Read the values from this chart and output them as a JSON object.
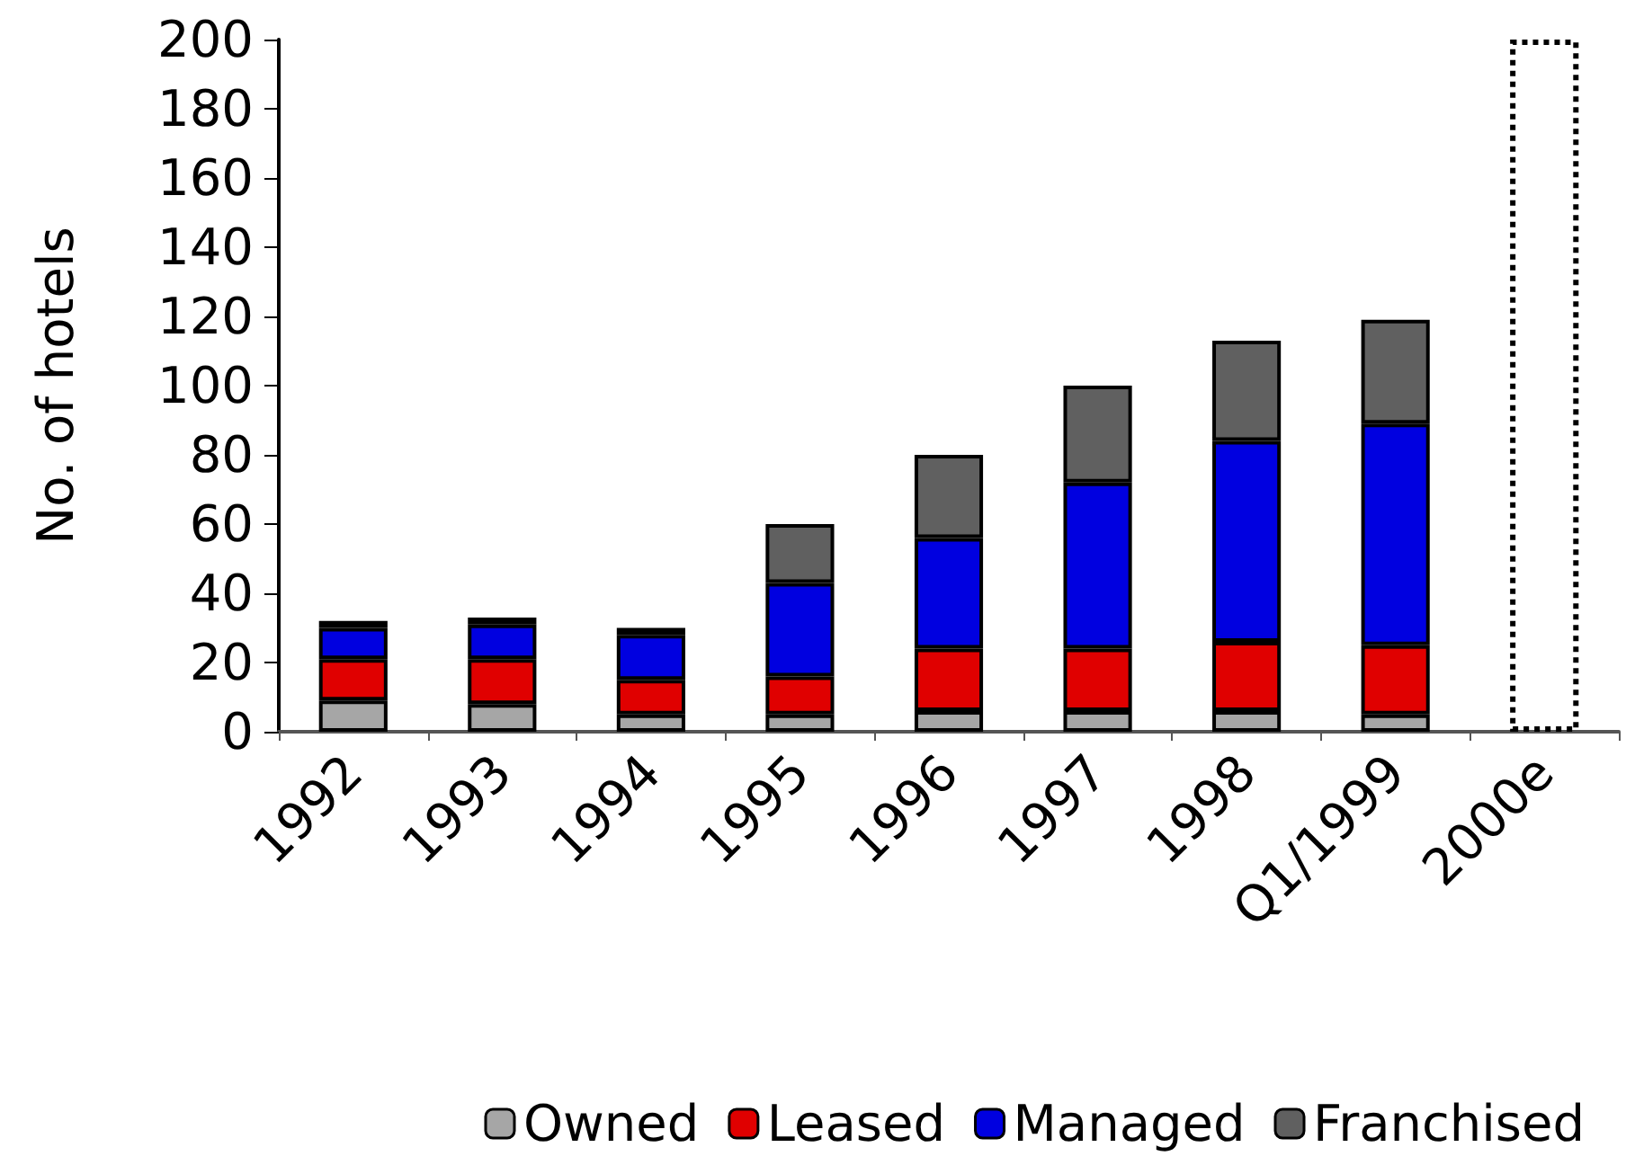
{
  "chart_data": {
    "type": "bar",
    "stacked": true,
    "ylabel": "No. of hotels",
    "categories": [
      "1992",
      "1993",
      "1994",
      "1995",
      "1996",
      "1997",
      "1998",
      "Q1/1999",
      "2000e"
    ],
    "series": [
      {
        "name": "Owned",
        "color": "#a6a6a6",
        "values": [
          9,
          8,
          5,
          5,
          6,
          6,
          6,
          5,
          null
        ]
      },
      {
        "name": "Leased",
        "color": "#e00000",
        "values": [
          12,
          13,
          10,
          11,
          18,
          18,
          20,
          20,
          null
        ]
      },
      {
        "name": "Managed",
        "color": "#0000e0",
        "values": [
          9,
          10,
          13,
          27,
          32,
          48,
          58,
          64,
          null
        ]
      },
      {
        "name": "Franchised",
        "color": "#606060",
        "values": [
          2,
          2,
          2,
          17,
          24,
          28,
          29,
          30,
          null
        ]
      },
      {
        "color": "#ffffff",
        "line_style": "dotted",
        "values": [
          null,
          null,
          null,
          null,
          null,
          null,
          null,
          null,
          200
        ]
      }
    ],
    "ylim": [
      0,
      200
    ],
    "yticks": [
      0,
      20,
      40,
      60,
      80,
      100,
      120,
      140,
      160,
      180,
      200
    ],
    "grid": false,
    "legend": "bottom"
  }
}
